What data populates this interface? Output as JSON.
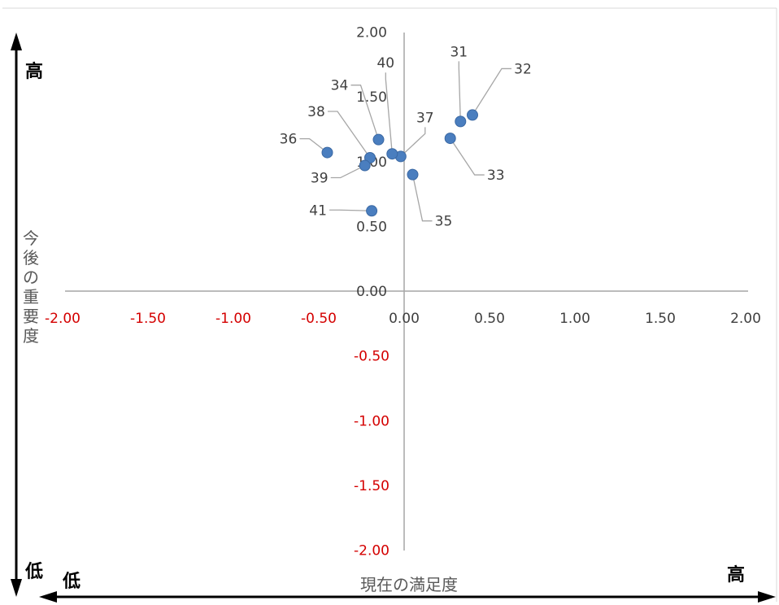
{
  "chart_data": {
    "type": "scatter",
    "title": "",
    "xlabel": "現在の満足度",
    "ylabel_chars": [
      "今",
      "後",
      "の",
      "重",
      "要",
      "度"
    ],
    "xlim": [
      -2.0,
      2.0
    ],
    "ylim": [
      -2.0,
      2.0
    ],
    "x_ticks": [
      "-2.00",
      "-1.50",
      "-1.00",
      "-0.50",
      "0.00",
      "0.50",
      "1.00",
      "1.50",
      "2.00"
    ],
    "y_ticks": [
      "2.00",
      "1.50",
      "1.00",
      "0.50",
      "0.00",
      "-0.50",
      "-1.00",
      "-1.50",
      "-2.00"
    ],
    "negative_tick_color": "#d40000",
    "positive_tick_color": "#404040",
    "point_color": "#4a7ebf",
    "grid": false,
    "points": [
      {
        "label": "31",
        "x": 0.33,
        "y": 1.31
      },
      {
        "label": "32",
        "x": 0.4,
        "y": 1.36
      },
      {
        "label": "33",
        "x": 0.27,
        "y": 1.18
      },
      {
        "label": "34",
        "x": -0.15,
        "y": 1.17
      },
      {
        "label": "35",
        "x": 0.05,
        "y": 0.9
      },
      {
        "label": "36",
        "x": -0.45,
        "y": 1.07
      },
      {
        "label": "37",
        "x": -0.02,
        "y": 1.04
      },
      {
        "label": "38",
        "x": -0.2,
        "y": 1.03
      },
      {
        "label": "39",
        "x": -0.23,
        "y": 0.97
      },
      {
        "label": "40",
        "x": -0.07,
        "y": 1.06
      },
      {
        "label": "41",
        "x": -0.19,
        "y": 0.62
      }
    ]
  },
  "corners": {
    "y_high": "高",
    "y_low": "低",
    "x_low": "低",
    "x_high": "高"
  }
}
